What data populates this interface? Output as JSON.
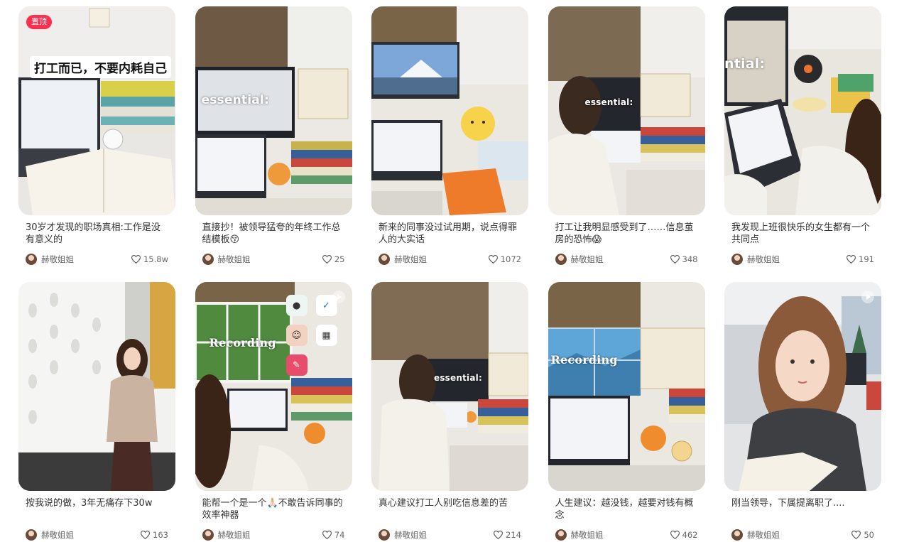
{
  "notes": [
    {
      "title": "30岁才发现的职场真相:工作是没有意义的",
      "author": "赫敬姐姐",
      "likes": "15.8w",
      "pinned": "置顶",
      "overlay": "打工而已，不要内耗自己"
    },
    {
      "title": "直接抄！被领导猛夸的年终工作总结模板😚",
      "author": "赫敬姐姐",
      "likes": "25",
      "caption": "essential:"
    },
    {
      "title": "新来的同事没过试用期，说点得罪人的大实话",
      "author": "赫敬姐姐",
      "likes": "1072"
    },
    {
      "title": "打工让我明显感受到了……信息茧房的恐怖😱",
      "author": "赫敬姐姐",
      "likes": "348",
      "caption": "essential:"
    },
    {
      "title": "我发现上班很快乐的女生都有一个共同点",
      "author": "赫敬姐姐",
      "likes": "191",
      "caption": "ntial:"
    },
    {
      "title": "按我说的做，3年无痛存下30w",
      "author": "赫敬姐姐",
      "likes": "163"
    },
    {
      "title": "能帮一个是一个🙏🏻不敢告诉同事的效率神器",
      "author": "赫敬姐姐",
      "likes": "74",
      "caption": "Recording"
    },
    {
      "title": "真心建议打工人别吃信息差的苦",
      "author": "赫敬姐姐",
      "likes": "214",
      "caption": "essential:"
    },
    {
      "title": "人生建议：越没钱，越要对钱有概念",
      "author": "赫敬姐姐",
      "likes": "462",
      "caption": "Recording"
    },
    {
      "title": "刚当领导，下属提离职了....",
      "author": "赫敬姐姐",
      "likes": "50"
    }
  ],
  "colors": {
    "pin": "#ff2e4d",
    "text": "#333333",
    "muted": "#666666"
  }
}
